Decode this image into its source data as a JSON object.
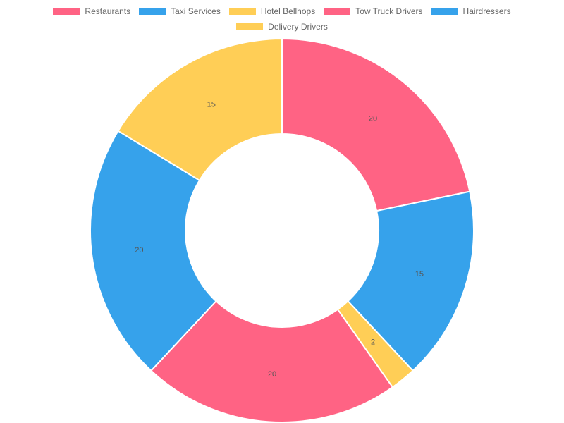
{
  "chart_data": {
    "type": "pie",
    "variant": "doughnut",
    "categories": [
      "Restaurants",
      "Taxi Services",
      "Hotel Bellhops",
      "Tow Truck Drivers",
      "Hairdressers",
      "Delivery Drivers"
    ],
    "values": [
      20,
      15,
      2,
      20,
      20,
      15
    ],
    "colors": [
      "#ff6384",
      "#36a2eb",
      "#ffce56",
      "#ff6384",
      "#36a2eb",
      "#ffce56"
    ],
    "legend_position": "top",
    "data_labels": [
      "20",
      "15",
      "2",
      "20",
      "20",
      "15"
    ]
  },
  "legend": {
    "items": [
      {
        "label": "Restaurants",
        "color": "#ff6384"
      },
      {
        "label": "Taxi Services",
        "color": "#36a2eb"
      },
      {
        "label": "Hotel Bellhops",
        "color": "#ffce56"
      },
      {
        "label": "Tow Truck Drivers",
        "color": "#ff6384"
      },
      {
        "label": "Hairdressers",
        "color": "#36a2eb"
      },
      {
        "label": "Delivery Drivers",
        "color": "#ffce56"
      }
    ]
  }
}
